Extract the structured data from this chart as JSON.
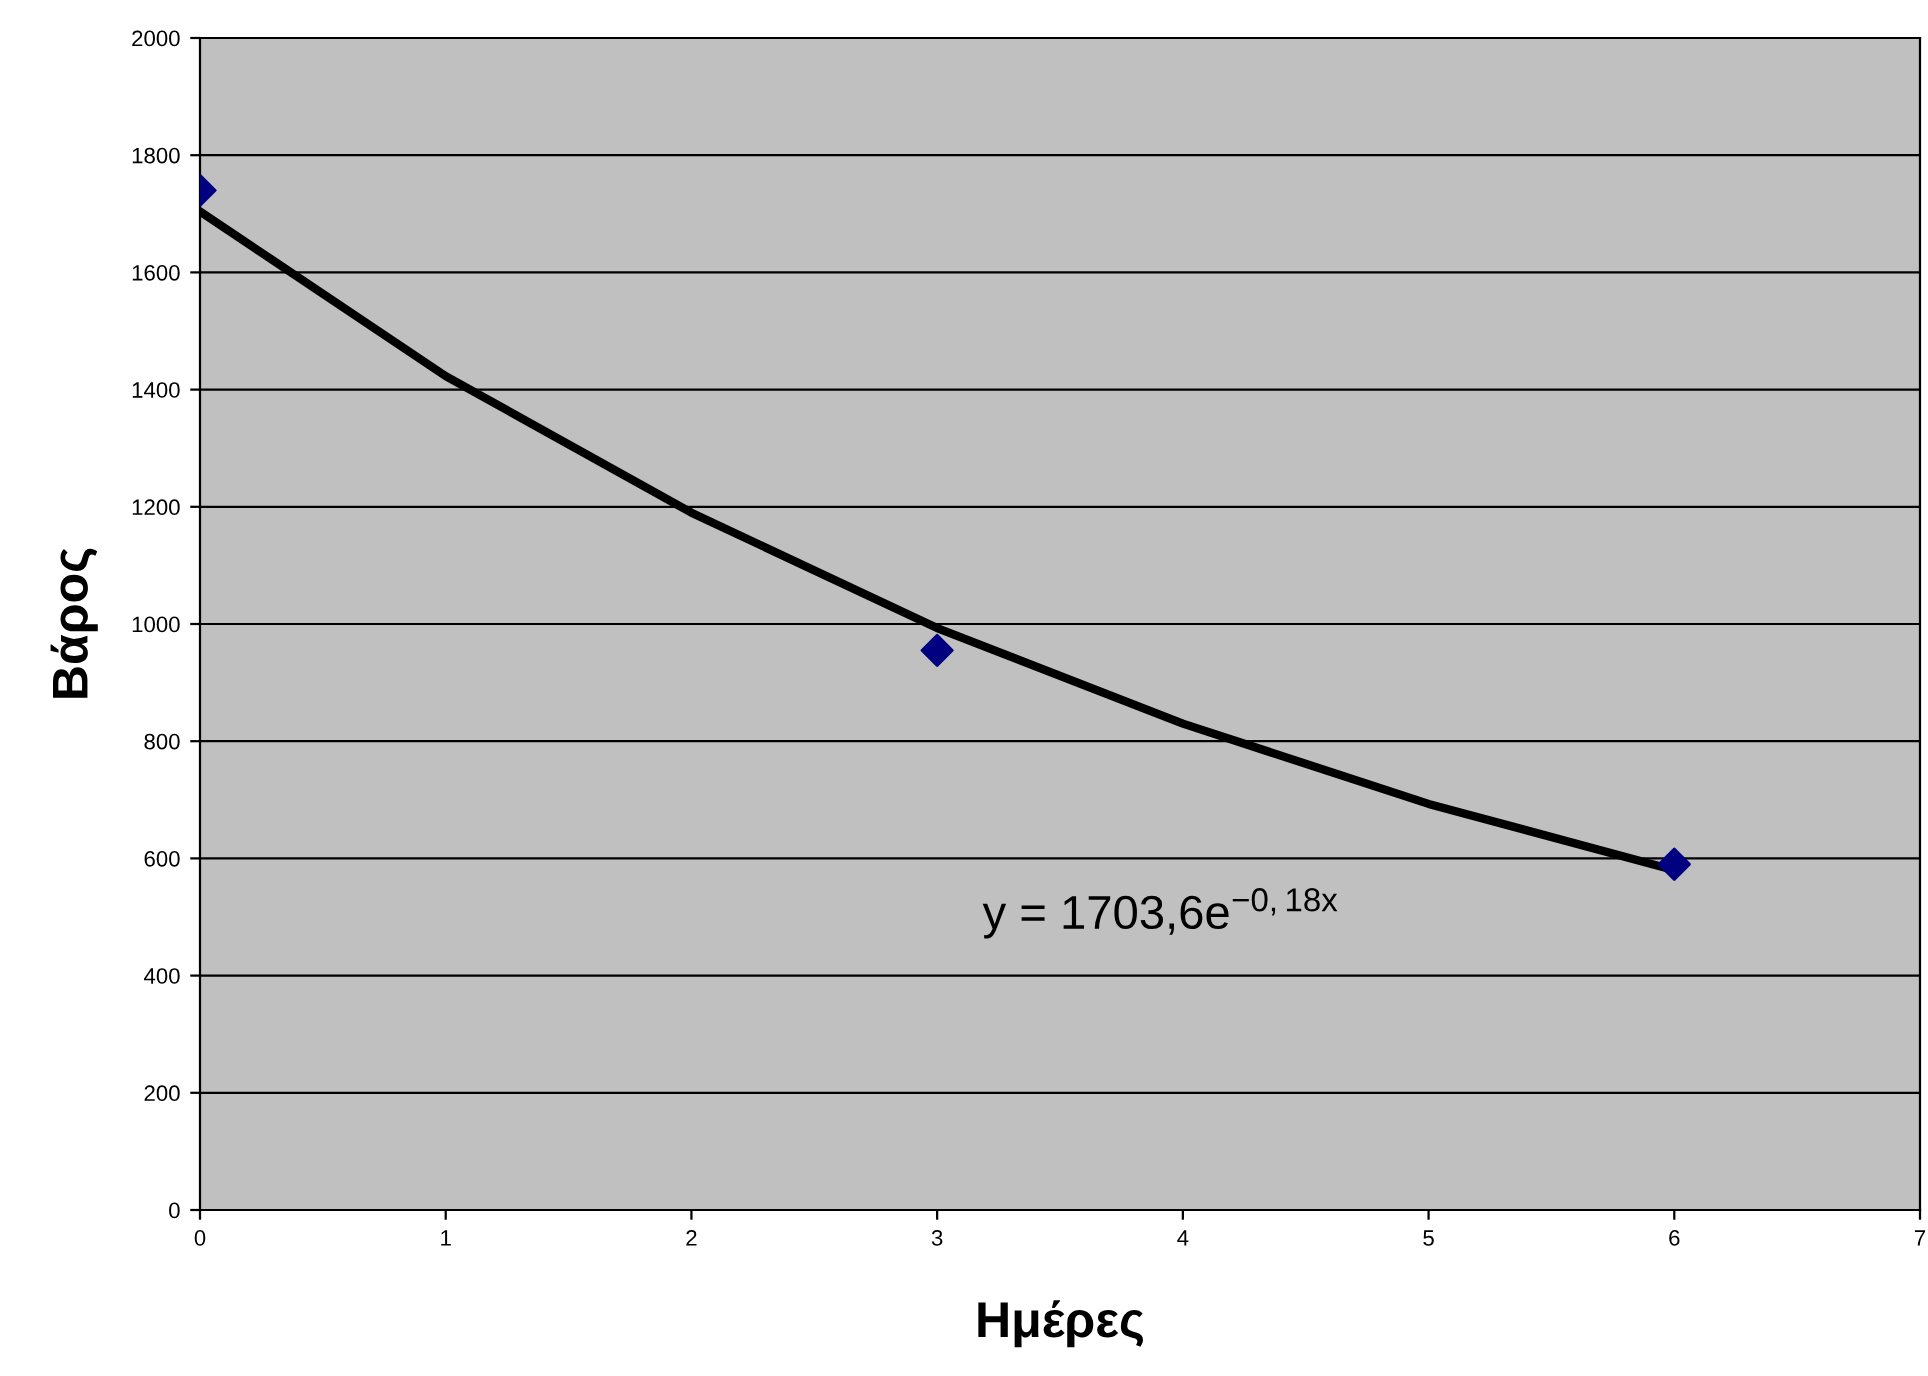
{
  "chart_data": {
    "type": "scatter",
    "xlabel": "Ημέρες",
    "ylabel": "Βάρος",
    "xlim": [
      0,
      7
    ],
    "xticks": [
      0,
      1,
      2,
      3,
      4,
      5,
      6,
      7
    ],
    "ylim": [
      0,
      2000
    ],
    "yticks": [
      0,
      200,
      400,
      600,
      800,
      1000,
      1200,
      1400,
      1600,
      1800,
      2000
    ],
    "grid": "y",
    "marker": "diamond",
    "series": [
      {
        "color": "#000080",
        "x": [
          0,
          3,
          6
        ],
        "values": [
          1740,
          955,
          590
        ]
      },
      {
        "type": "line",
        "color": "#000000",
        "marker": "none",
        "x": [
          0,
          1,
          2,
          3,
          4,
          5,
          6
        ],
        "values": [
          1704,
          1423,
          1190,
          993,
          830,
          693,
          580
        ]
      }
    ],
    "annotations": [
      "y = 1703,6e$^{−0,18x}$"
    ]
  }
}
